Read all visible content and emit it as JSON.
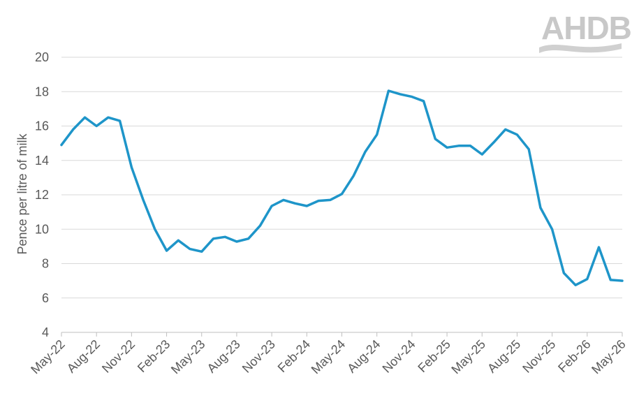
{
  "chart_data": {
    "type": "line",
    "title": "",
    "xlabel": "",
    "ylabel": "Pence per litre of milk",
    "ylim": [
      4,
      20
    ],
    "yticks": [
      4,
      6,
      8,
      10,
      12,
      14,
      16,
      18,
      20
    ],
    "grid": true,
    "legend": "none",
    "x_tick_labels": [
      "May-22",
      "Aug-22",
      "Nov-22",
      "Feb-23",
      "May-23",
      "Aug-23",
      "Nov-23",
      "Feb-24",
      "May-24",
      "Aug-24",
      "Nov-24",
      "Feb-25",
      "May-25",
      "Aug-25",
      "Nov-25",
      "Feb-26",
      "May-26"
    ],
    "series": [
      {
        "color": "#1e95c9",
        "x": [
          "May-22",
          "Jun-22",
          "Jul-22",
          "Aug-22",
          "Sep-22",
          "Oct-22",
          "Nov-22",
          "Dec-22",
          "Jan-23",
          "Feb-23",
          "Mar-23",
          "Apr-23",
          "May-23",
          "Jun-23",
          "Jul-23",
          "Aug-23",
          "Sep-23",
          "Oct-23",
          "Nov-23",
          "Dec-23",
          "Jan-24",
          "Feb-24",
          "Mar-24",
          "Apr-24",
          "May-24",
          "Jun-24",
          "Jul-24",
          "Aug-24",
          "Sep-24",
          "Oct-24",
          "Nov-24",
          "Dec-24",
          "Jan-25",
          "Feb-25",
          "Mar-25",
          "Apr-25",
          "May-25",
          "Jun-25",
          "Jul-25",
          "Aug-25",
          "Sep-25",
          "Oct-25",
          "Nov-25",
          "Dec-25",
          "Jan-26",
          "Feb-26",
          "Mar-26",
          "Apr-26",
          "May-26"
        ],
        "values": [
          14.9,
          15.8,
          16.5,
          16.0,
          16.5,
          16.3,
          13.6,
          11.7,
          10.0,
          8.75,
          9.35,
          8.85,
          8.7,
          9.45,
          9.55,
          9.28,
          9.45,
          10.2,
          11.35,
          11.7,
          11.5,
          11.35,
          11.65,
          11.7,
          12.05,
          13.1,
          14.5,
          15.5,
          18.05,
          17.85,
          17.7,
          17.45,
          15.25,
          14.75,
          14.85,
          14.85,
          14.35,
          15.05,
          15.8,
          15.5,
          14.65,
          11.25,
          10.0,
          7.45,
          6.75,
          7.1,
          8.95,
          7.05,
          7.0
        ]
      }
    ]
  },
  "logo": {
    "text": "AHDB",
    "color": "#c8c8c8"
  },
  "colors": {
    "line": "#1e95c9",
    "grid": "#d9d9d9",
    "text": "#595959"
  }
}
